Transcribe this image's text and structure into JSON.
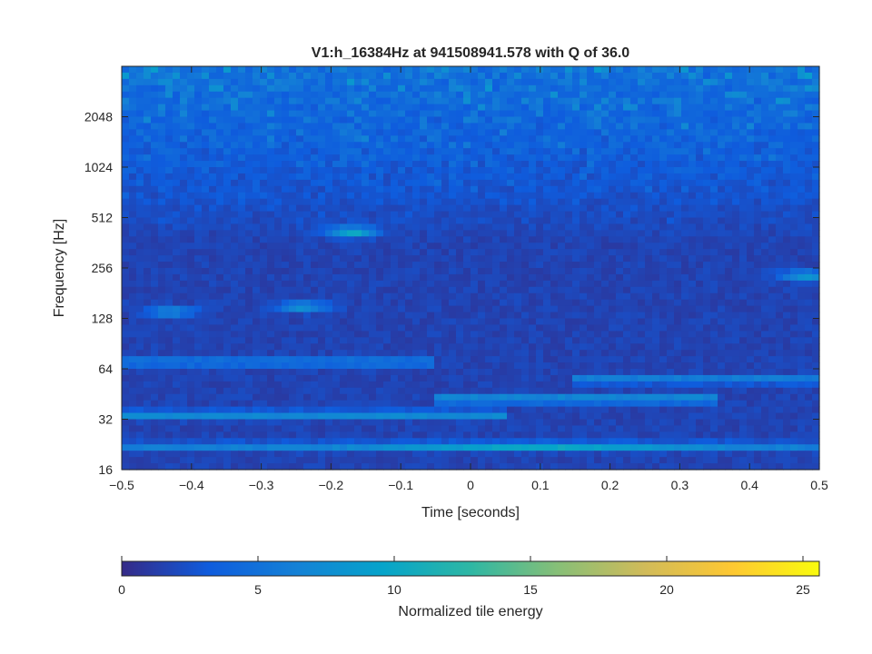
{
  "chart_data": {
    "type": "heatmap",
    "title": "V1:h_16384Hz at 941508941.578 with Q of 36.0",
    "xlabel": "Time [seconds]",
    "ylabel": "Frequency [Hz]",
    "xlim": [
      -0.5,
      0.5
    ],
    "ylim": [
      16,
      4096
    ],
    "yscale": "log2",
    "xticks": [
      -0.5,
      -0.4,
      -0.3,
      -0.2,
      -0.1,
      0,
      0.1,
      0.2,
      0.3,
      0.4,
      0.5
    ],
    "xtick_labels": [
      "−0.5",
      "−0.4",
      "−0.3",
      "−0.2",
      "−0.1",
      "0",
      "0.1",
      "0.2",
      "0.3",
      "0.4",
      "0.5"
    ],
    "yticks": [
      16,
      32,
      64,
      128,
      256,
      512,
      1024,
      2048
    ],
    "ytick_labels": [
      "16",
      "32",
      "64",
      "128",
      "256",
      "512",
      "1024",
      "2048"
    ],
    "colorbar": {
      "label": "Normalized tile energy",
      "range": [
        0,
        25.6
      ],
      "ticks": [
        0,
        5,
        10,
        15,
        20,
        25
      ],
      "tick_labels": [
        "0",
        "5",
        "10",
        "15",
        "20",
        "25"
      ],
      "colormap": "parula",
      "colors": [
        "#352a87",
        "#0f5cdd",
        "#1481d6",
        "#06a4ca",
        "#2eb7a4",
        "#87bf77",
        "#d1bb59",
        "#fec832",
        "#f9fb0e"
      ]
    },
    "features": [
      {
        "type": "band",
        "f_hz": 22,
        "t_start": -0.5,
        "t_end": 0.5,
        "peak_t": 0.1,
        "energy": 9
      },
      {
        "type": "band",
        "f_hz": 34,
        "t_start": -0.5,
        "t_end": 0.0,
        "energy": 6
      },
      {
        "type": "band",
        "f_hz": 42,
        "t_start": 0.0,
        "t_end": 0.3,
        "energy": 7
      },
      {
        "type": "band",
        "f_hz": 70,
        "t_start": -0.5,
        "t_end": -0.1,
        "energy": 5
      },
      {
        "type": "band",
        "f_hz": 55,
        "t_start": 0.2,
        "t_end": 0.5,
        "energy": 5
      },
      {
        "type": "blob",
        "f_hz": 140,
        "t": -0.43,
        "energy": 6
      },
      {
        "type": "blob",
        "f_hz": 150,
        "t": -0.24,
        "energy": 7
      },
      {
        "type": "blob",
        "f_hz": 420,
        "t": -0.17,
        "energy": 9
      },
      {
        "type": "blob",
        "f_hz": 230,
        "t": 0.48,
        "energy": 7
      }
    ]
  }
}
